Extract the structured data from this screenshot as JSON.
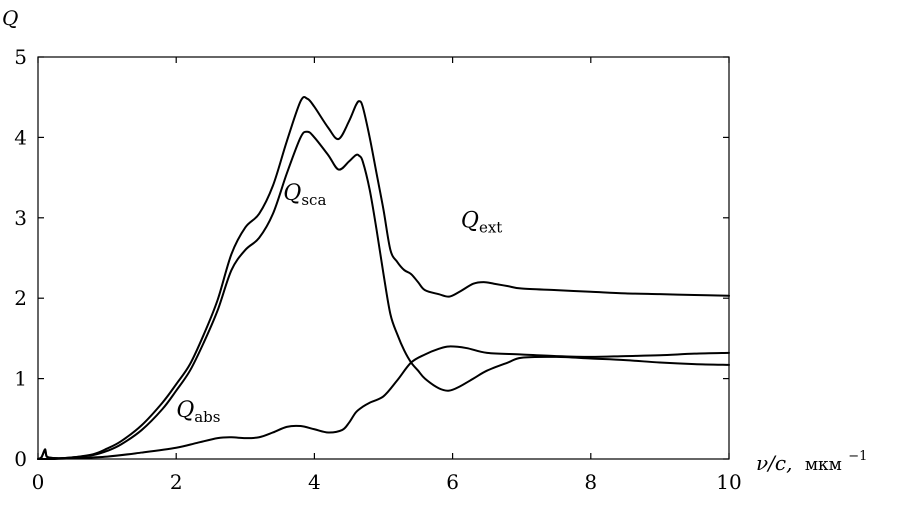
{
  "chart_data": {
    "type": "line",
    "ylabel": "Q",
    "xlabel_var": "ν/c,",
    "xlabel_unit": "мкм",
    "xlabel_exp": "−1",
    "xlim": [
      0,
      10
    ],
    "ylim": [
      0,
      5
    ],
    "grid": false,
    "x_ticks": [
      0,
      2,
      4,
      6,
      8,
      10
    ],
    "y_ticks": [
      0,
      1,
      2,
      3,
      4,
      5
    ],
    "series": [
      {
        "name": "Q_ext",
        "label_main": "Q",
        "label_sub": "ext",
        "x": [
          0,
          0.05,
          0.1,
          0.12,
          0.15,
          0.3,
          0.5,
          0.8,
          1.0,
          1.2,
          1.5,
          1.8,
          2.0,
          2.2,
          2.4,
          2.6,
          2.8,
          3.0,
          3.2,
          3.4,
          3.6,
          3.8,
          3.9,
          4.0,
          4.2,
          4.35,
          4.5,
          4.6,
          4.65,
          4.7,
          4.8,
          4.9,
          5.0,
          5.1,
          5.2,
          5.3,
          5.4,
          5.5,
          5.6,
          5.8,
          5.95,
          6.1,
          6.3,
          6.45,
          6.6,
          6.8,
          7.0,
          7.5,
          8.0,
          8.5,
          9.0,
          9.5,
          10.0
        ],
        "y": [
          0,
          0.02,
          0.12,
          0.05,
          0.02,
          0.01,
          0.02,
          0.06,
          0.13,
          0.22,
          0.42,
          0.7,
          0.93,
          1.18,
          1.55,
          1.98,
          2.55,
          2.88,
          3.05,
          3.4,
          3.95,
          4.45,
          4.48,
          4.38,
          4.12,
          3.98,
          4.2,
          4.4,
          4.45,
          4.38,
          4.0,
          3.55,
          3.1,
          2.6,
          2.45,
          2.35,
          2.3,
          2.2,
          2.1,
          2.05,
          2.02,
          2.08,
          2.18,
          2.2,
          2.18,
          2.15,
          2.12,
          2.1,
          2.08,
          2.06,
          2.05,
          2.04,
          2.03
        ]
      },
      {
        "name": "Q_sca",
        "label_main": "Q",
        "label_sub": "sca",
        "x": [
          0,
          0.05,
          0.1,
          0.12,
          0.15,
          0.3,
          0.5,
          0.8,
          1.0,
          1.2,
          1.5,
          1.8,
          2.0,
          2.2,
          2.4,
          2.6,
          2.8,
          3.0,
          3.2,
          3.4,
          3.6,
          3.8,
          3.9,
          4.0,
          4.2,
          4.35,
          4.5,
          4.6,
          4.65,
          4.7,
          4.8,
          4.9,
          5.0,
          5.1,
          5.2,
          5.3,
          5.4,
          5.5,
          5.6,
          5.8,
          5.95,
          6.1,
          6.3,
          6.5,
          6.8,
          7.0,
          7.5,
          8.0,
          8.5,
          9.0,
          9.5,
          10.0
        ],
        "y": [
          0,
          0.02,
          0.11,
          0.04,
          0.02,
          0.01,
          0.02,
          0.05,
          0.1,
          0.18,
          0.36,
          0.62,
          0.85,
          1.1,
          1.45,
          1.85,
          2.35,
          2.6,
          2.75,
          3.05,
          3.55,
          4.0,
          4.07,
          4.0,
          3.78,
          3.6,
          3.7,
          3.78,
          3.77,
          3.7,
          3.35,
          2.85,
          2.3,
          1.8,
          1.55,
          1.35,
          1.2,
          1.1,
          1.0,
          0.88,
          0.85,
          0.9,
          1.0,
          1.1,
          1.2,
          1.26,
          1.27,
          1.25,
          1.23,
          1.2,
          1.18,
          1.17
        ]
      },
      {
        "name": "Q_abs",
        "label_main": "Q",
        "label_sub": "abs",
        "x": [
          0,
          0.2,
          0.5,
          1.0,
          1.5,
          2.0,
          2.3,
          2.6,
          2.8,
          3.0,
          3.2,
          3.4,
          3.6,
          3.8,
          4.0,
          4.2,
          4.4,
          4.5,
          4.6,
          4.7,
          4.8,
          5.0,
          5.2,
          5.4,
          5.6,
          5.8,
          5.95,
          6.2,
          6.5,
          7.0,
          7.5,
          8.0,
          8.5,
          9.0,
          9.5,
          10.0
        ],
        "y": [
          0,
          0.0,
          0.01,
          0.03,
          0.08,
          0.14,
          0.2,
          0.26,
          0.27,
          0.26,
          0.27,
          0.33,
          0.4,
          0.41,
          0.37,
          0.33,
          0.36,
          0.45,
          0.58,
          0.65,
          0.7,
          0.78,
          0.98,
          1.2,
          1.3,
          1.37,
          1.4,
          1.38,
          1.32,
          1.3,
          1.28,
          1.27,
          1.28,
          1.29,
          1.31,
          1.32
        ]
      }
    ],
    "annotations": [
      {
        "series": "Q_sca",
        "x": 3.55,
        "y": 3.22
      },
      {
        "series": "Q_ext",
        "x": 6.12,
        "y": 2.88
      },
      {
        "series": "Q_abs",
        "x": 2.0,
        "y": 0.52
      }
    ]
  }
}
